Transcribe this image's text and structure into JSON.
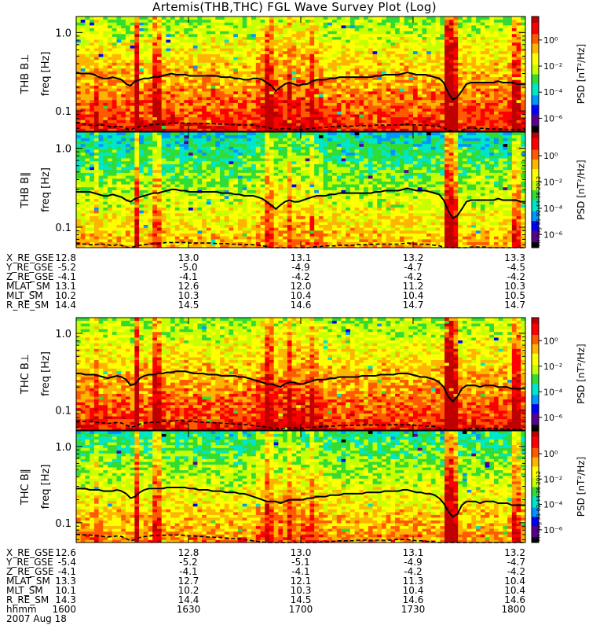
{
  "title": "Artemis(THB,THC) FGL Wave Survey Plot (Log)",
  "colors": {
    "colormap": [
      "#000000",
      "#5a0090",
      "#0000ff",
      "#0096ff",
      "#00e6c8",
      "#32dc32",
      "#c8ff00",
      "#ffff00",
      "#ffb400",
      "#ff5a00",
      "#ff0000",
      "#c00000"
    ],
    "trace": "#000000"
  },
  "chart_data": [
    {
      "type": "heatmap",
      "id": "thb-bperp",
      "ylabel": "THB B⊥",
      "yunit": "freq [Hz]",
      "ylim": [
        0.055,
        1.6
      ],
      "yscale": "log",
      "yticks": [
        0.1,
        1.0
      ],
      "ytick_labels": [
        "0.1",
        "1.0"
      ],
      "base_level": 0.72,
      "f_upper": [
        0.31,
        0.3,
        0.3,
        0.3,
        0.29,
        0.27,
        0.26,
        0.26,
        0.27,
        0.26,
        0.25,
        0.22,
        0.21,
        0.24,
        0.25,
        0.26,
        0.26,
        0.27,
        0.27,
        0.28,
        0.29,
        0.3,
        0.29,
        0.29,
        0.29,
        0.28,
        0.28,
        0.28,
        0.28,
        0.28,
        0.28,
        0.28,
        0.27,
        0.27,
        0.27,
        0.26,
        0.26,
        0.25,
        0.25,
        0.26,
        0.26,
        0.25,
        0.23,
        0.21,
        0.18,
        0.2,
        0.22,
        0.23,
        0.22,
        0.21,
        0.22,
        0.22,
        0.24,
        0.25,
        0.25,
        0.25,
        0.26,
        0.26,
        0.27,
        0.27,
        0.27,
        0.27,
        0.27,
        0.27,
        0.27,
        0.27,
        0.28,
        0.28,
        0.29,
        0.29,
        0.29,
        0.29,
        0.3,
        0.31,
        0.3,
        0.29,
        0.29,
        0.29,
        0.28,
        0.27,
        0.26,
        0.23,
        0.17,
        0.14,
        0.15,
        0.18,
        0.22,
        0.23,
        0.23,
        0.23,
        0.23,
        0.23,
        0.23,
        0.24,
        0.23,
        0.23,
        0.23,
        0.22,
        0.22,
        0.22
      ],
      "f_lower": [
        0.072,
        0.07,
        0.068,
        0.066,
        0.065,
        0.066,
        0.066,
        0.064,
        0.062,
        0.064,
        0.063,
        0.06,
        0.057,
        0.061,
        0.063,
        0.064,
        0.066,
        0.067,
        0.068,
        0.068,
        0.069,
        0.07,
        0.07,
        0.07,
        0.07,
        0.069,
        0.069,
        0.069,
        0.069,
        0.069,
        0.069,
        0.068,
        0.068,
        0.068,
        0.067,
        0.067,
        0.066,
        0.066,
        0.066,
        0.066,
        0.065,
        0.063,
        0.062,
        0.06,
        0.058,
        0.059,
        0.06,
        0.059,
        0.058,
        0.058,
        0.058,
        0.059,
        0.06,
        0.061,
        0.061,
        0.062,
        0.063,
        0.063,
        0.064,
        0.064,
        0.064,
        0.064,
        0.065,
        0.065,
        0.065,
        0.065,
        0.066,
        0.066,
        0.066,
        0.066,
        0.066,
        0.066,
        0.067,
        0.068,
        0.067,
        0.066,
        0.066,
        0.066,
        0.065,
        0.064,
        0.063,
        0.061,
        0.057,
        0.054,
        0.055,
        0.057,
        0.06,
        0.061,
        0.06,
        0.06,
        0.06,
        0.059,
        0.059,
        0.059,
        0.059,
        0.058,
        0.058,
        0.058,
        0.058,
        0.058
      ]
    },
    {
      "type": "heatmap",
      "id": "thb-bpar",
      "ylabel": "THB B∥",
      "yunit": "freq [Hz]",
      "ylim": [
        0.055,
        1.6
      ],
      "yscale": "log",
      "yticks": [
        0.1,
        1.0
      ],
      "ytick_labels": [
        "0.1",
        "1.0"
      ],
      "base_level": 0.55,
      "f_upper": [
        0.28,
        0.28,
        0.28,
        0.28,
        0.27,
        0.26,
        0.25,
        0.25,
        0.26,
        0.25,
        0.24,
        0.22,
        0.21,
        0.23,
        0.24,
        0.25,
        0.26,
        0.27,
        0.27,
        0.28,
        0.29,
        0.3,
        0.3,
        0.29,
        0.29,
        0.28,
        0.28,
        0.28,
        0.28,
        0.28,
        0.28,
        0.28,
        0.27,
        0.27,
        0.27,
        0.26,
        0.26,
        0.25,
        0.25,
        0.25,
        0.24,
        0.23,
        0.21,
        0.19,
        0.17,
        0.19,
        0.21,
        0.22,
        0.21,
        0.21,
        0.22,
        0.23,
        0.24,
        0.25,
        0.25,
        0.25,
        0.26,
        0.26,
        0.27,
        0.27,
        0.27,
        0.27,
        0.27,
        0.27,
        0.27,
        0.27,
        0.28,
        0.28,
        0.29,
        0.29,
        0.29,
        0.29,
        0.3,
        0.31,
        0.3,
        0.29,
        0.29,
        0.29,
        0.28,
        0.27,
        0.26,
        0.22,
        0.16,
        0.13,
        0.14,
        0.17,
        0.21,
        0.22,
        0.22,
        0.22,
        0.22,
        0.22,
        0.22,
        0.23,
        0.22,
        0.22,
        0.22,
        0.22,
        0.21,
        0.21
      ],
      "f_lower": [
        0.063,
        0.062,
        0.061,
        0.06,
        0.06,
        0.061,
        0.061,
        0.06,
        0.058,
        0.06,
        0.059,
        0.056,
        0.054,
        0.057,
        0.059,
        0.06,
        0.061,
        0.062,
        0.062,
        0.063,
        0.064,
        0.064,
        0.064,
        0.064,
        0.064,
        0.063,
        0.063,
        0.063,
        0.063,
        0.063,
        0.063,
        0.062,
        0.062,
        0.062,
        0.061,
        0.061,
        0.06,
        0.06,
        0.06,
        0.06,
        0.059,
        0.058,
        0.057,
        0.055,
        0.053,
        0.054,
        0.055,
        0.055,
        0.054,
        0.054,
        0.054,
        0.055,
        0.056,
        0.057,
        0.057,
        0.058,
        0.058,
        0.058,
        0.059,
        0.059,
        0.059,
        0.059,
        0.06,
        0.06,
        0.06,
        0.06,
        0.061,
        0.061,
        0.061,
        0.061,
        0.061,
        0.061,
        0.062,
        0.063,
        0.062,
        0.061,
        0.061,
        0.061,
        0.06,
        0.059,
        0.058,
        0.056,
        0.052,
        0.05,
        0.051,
        0.053,
        0.055,
        0.056,
        0.056,
        0.056,
        0.056,
        0.055,
        0.055,
        0.055,
        0.055,
        0.054,
        0.054,
        0.054,
        0.054,
        0.054
      ]
    },
    {
      "type": "heatmap",
      "id": "thc-bperp",
      "ylabel": "THC B⊥",
      "yunit": "freq [Hz]",
      "ylim": [
        0.055,
        1.6
      ],
      "yscale": "log",
      "yticks": [
        0.1,
        1.0
      ],
      "ytick_labels": [
        "0.1",
        "1.0"
      ],
      "base_level": 0.72,
      "f_upper": [
        0.3,
        0.3,
        0.29,
        0.29,
        0.29,
        0.28,
        0.27,
        0.26,
        0.27,
        0.28,
        0.27,
        0.25,
        0.21,
        0.22,
        0.26,
        0.28,
        0.29,
        0.29,
        0.3,
        0.3,
        0.31,
        0.31,
        0.32,
        0.32,
        0.32,
        0.31,
        0.3,
        0.3,
        0.3,
        0.29,
        0.29,
        0.29,
        0.28,
        0.28,
        0.28,
        0.28,
        0.27,
        0.27,
        0.26,
        0.25,
        0.24,
        0.23,
        0.22,
        0.22,
        0.21,
        0.2,
        0.22,
        0.23,
        0.23,
        0.22,
        0.22,
        0.23,
        0.24,
        0.25,
        0.25,
        0.25,
        0.26,
        0.26,
        0.27,
        0.27,
        0.27,
        0.27,
        0.27,
        0.28,
        0.28,
        0.28,
        0.28,
        0.29,
        0.29,
        0.29,
        0.29,
        0.3,
        0.3,
        0.3,
        0.29,
        0.28,
        0.27,
        0.27,
        0.26,
        0.25,
        0.23,
        0.2,
        0.15,
        0.13,
        0.15,
        0.19,
        0.21,
        0.21,
        0.21,
        0.2,
        0.21,
        0.21,
        0.21,
        0.2,
        0.2,
        0.2,
        0.19,
        0.19,
        0.19,
        0.19
      ],
      "f_lower": [
        0.072,
        0.072,
        0.071,
        0.071,
        0.07,
        0.069,
        0.068,
        0.067,
        0.068,
        0.069,
        0.068,
        0.064,
        0.06,
        0.062,
        0.066,
        0.068,
        0.069,
        0.07,
        0.07,
        0.071,
        0.072,
        0.072,
        0.073,
        0.073,
        0.072,
        0.071,
        0.071,
        0.07,
        0.07,
        0.069,
        0.069,
        0.068,
        0.068,
        0.067,
        0.067,
        0.066,
        0.066,
        0.065,
        0.064,
        0.063,
        0.062,
        0.061,
        0.06,
        0.059,
        0.058,
        0.057,
        0.058,
        0.059,
        0.059,
        0.058,
        0.058,
        0.059,
        0.06,
        0.06,
        0.061,
        0.061,
        0.062,
        0.062,
        0.063,
        0.063,
        0.063,
        0.063,
        0.063,
        0.064,
        0.064,
        0.064,
        0.064,
        0.064,
        0.064,
        0.064,
        0.065,
        0.065,
        0.065,
        0.065,
        0.064,
        0.063,
        0.063,
        0.062,
        0.062,
        0.061,
        0.059,
        0.056,
        0.052,
        0.05,
        0.052,
        0.055,
        0.057,
        0.058,
        0.058,
        0.057,
        0.058,
        0.058,
        0.058,
        0.057,
        0.057,
        0.057,
        0.056,
        0.056,
        0.056,
        0.056
      ]
    },
    {
      "type": "heatmap",
      "id": "thc-bpar",
      "ylabel": "THC B∥",
      "yunit": "freq [Hz]",
      "ylim": [
        0.055,
        1.6
      ],
      "yscale": "log",
      "yticks": [
        0.1,
        1.0
      ],
      "ytick_labels": [
        "0.1",
        "1.0"
      ],
      "base_level": 0.6,
      "f_upper": [
        0.28,
        0.28,
        0.28,
        0.27,
        0.27,
        0.27,
        0.26,
        0.26,
        0.26,
        0.27,
        0.26,
        0.24,
        0.21,
        0.22,
        0.25,
        0.27,
        0.28,
        0.28,
        0.28,
        0.28,
        0.29,
        0.29,
        0.29,
        0.29,
        0.29,
        0.28,
        0.28,
        0.27,
        0.27,
        0.27,
        0.26,
        0.26,
        0.26,
        0.25,
        0.25,
        0.25,
        0.24,
        0.24,
        0.23,
        0.22,
        0.21,
        0.2,
        0.19,
        0.19,
        0.19,
        0.18,
        0.19,
        0.2,
        0.2,
        0.2,
        0.2,
        0.21,
        0.21,
        0.22,
        0.22,
        0.22,
        0.23,
        0.23,
        0.23,
        0.24,
        0.24,
        0.24,
        0.24,
        0.24,
        0.25,
        0.25,
        0.25,
        0.25,
        0.26,
        0.26,
        0.26,
        0.26,
        0.27,
        0.27,
        0.26,
        0.25,
        0.25,
        0.24,
        0.24,
        0.23,
        0.21,
        0.18,
        0.14,
        0.12,
        0.13,
        0.17,
        0.19,
        0.19,
        0.19,
        0.18,
        0.19,
        0.19,
        0.19,
        0.18,
        0.18,
        0.18,
        0.17,
        0.17,
        0.17,
        0.17
      ],
      "f_lower": [
        0.07,
        0.07,
        0.069,
        0.069,
        0.068,
        0.067,
        0.066,
        0.065,
        0.066,
        0.067,
        0.066,
        0.062,
        0.058,
        0.06,
        0.064,
        0.066,
        0.067,
        0.068,
        0.068,
        0.068,
        0.069,
        0.069,
        0.069,
        0.069,
        0.068,
        0.067,
        0.067,
        0.066,
        0.066,
        0.065,
        0.065,
        0.064,
        0.064,
        0.063,
        0.062,
        0.062,
        0.061,
        0.06,
        0.059,
        0.058,
        0.057,
        0.056,
        0.055,
        0.054,
        0.053,
        0.052,
        0.053,
        0.054,
        0.054,
        0.053,
        0.053,
        0.054,
        0.055,
        0.055,
        0.056,
        0.056,
        0.057,
        0.057,
        0.058,
        0.058,
        0.058,
        0.058,
        0.059,
        0.059,
        0.059,
        0.059,
        0.059,
        0.059,
        0.059,
        0.059,
        0.06,
        0.06,
        0.06,
        0.06,
        0.059,
        0.058,
        0.058,
        0.057,
        0.057,
        0.056,
        0.055,
        0.052,
        0.048,
        0.046,
        0.048,
        0.051,
        0.053,
        0.054,
        0.054,
        0.053,
        0.054,
        0.054,
        0.054,
        0.053,
        0.053,
        0.053,
        0.052,
        0.052,
        0.052,
        0.052
      ]
    }
  ],
  "colorbar": {
    "label": "PSD [nT²/Hz]",
    "range_exp": [
      -7,
      1.8
    ],
    "ticks": [
      {
        "exp": 0,
        "label": "10⁰"
      },
      {
        "exp": -2,
        "label": "10⁻²"
      },
      {
        "exp": -4,
        "label": "10⁻⁴"
      },
      {
        "exp": -6,
        "label": "10⁻⁶"
      }
    ]
  },
  "stamps": [
    "Fri Aug 31 02:44:36 2012",
    "Fri Aug 31 02:44:36 2012"
  ],
  "ephemeris_thb": {
    "rows": [
      {
        "label": "X_RE_GSE",
        "values": [
          "12.8",
          "13.0",
          "13.1",
          "13.2",
          "13.3"
        ]
      },
      {
        "label": "Y_RE_GSE",
        "values": [
          "-5.2",
          "-5.0",
          "-4.9",
          "-4.7",
          "-4.5"
        ]
      },
      {
        "label": "Z_RE_GSE",
        "values": [
          "-4.1",
          "-4.1",
          "-4.2",
          "-4.2",
          "-4.2"
        ]
      },
      {
        "label": "MLAT_SM",
        "values": [
          "13.1",
          "12.6",
          "12.0",
          "11.2",
          "10.3"
        ]
      },
      {
        "label": "MLT_SM",
        "values": [
          "10.2",
          "10.3",
          "10.4",
          "10.4",
          "10.5"
        ]
      },
      {
        "label": "R_RE_SM",
        "values": [
          "14.4",
          "14.5",
          "14.6",
          "14.7",
          "14.7"
        ]
      }
    ]
  },
  "ephemeris_thc": {
    "rows": [
      {
        "label": "X_RE_GSE",
        "values": [
          "12.6",
          "12.8",
          "13.0",
          "13.1",
          "13.2"
        ]
      },
      {
        "label": "Y_RE_GSE",
        "values": [
          "-5.4",
          "-5.2",
          "-5.1",
          "-4.9",
          "-4.7"
        ]
      },
      {
        "label": "Z_RE_GSE",
        "values": [
          "-4.1",
          "-4.1",
          "-4.1",
          "-4.2",
          "-4.2"
        ]
      },
      {
        "label": "MLAT_SM",
        "values": [
          "13.3",
          "12.7",
          "12.1",
          "11.3",
          "10.4"
        ]
      },
      {
        "label": "MLT_SM",
        "values": [
          "10.1",
          "10.2",
          "10.3",
          "10.4",
          "10.4"
        ]
      },
      {
        "label": "R_RE_SM",
        "values": [
          "14.3",
          "14.4",
          "14.5",
          "14.6",
          "14.6"
        ]
      },
      {
        "label": "hhmm",
        "values": [
          "1600",
          "1630",
          "1700",
          "1730",
          "1800"
        ]
      }
    ]
  },
  "date_label": "2007 Aug 18"
}
